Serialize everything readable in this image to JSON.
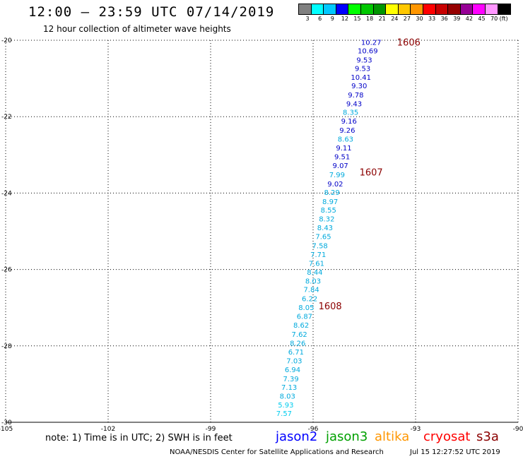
{
  "title": "12:00 – 23:59 UTC 07/14/2019",
  "subtitle": "12 hour collection of altimeter wave heights",
  "legend": {
    "colors": [
      "#808080",
      "#00ffff",
      "#00c8ff",
      "#0000ff",
      "#00ff00",
      "#00c800",
      "#009600",
      "#ffff00",
      "#ffc800",
      "#ff9600",
      "#ff0000",
      "#c80000",
      "#960000",
      "#960096",
      "#ff00ff",
      "#ff96ff",
      "#000000"
    ],
    "labels": [
      "3",
      "6",
      "9",
      "12",
      "15",
      "18",
      "21",
      "24",
      "27",
      "30",
      "33",
      "36",
      "39",
      "42",
      "45",
      "70",
      "(ft)"
    ]
  },
  "map": {
    "lon_ticks": [
      "-105",
      "-102",
      "-99",
      "-96",
      "-93",
      "-90"
    ],
    "lat_ticks": [
      "-20",
      "-22",
      "-24",
      "-26",
      "-28",
      "-30"
    ],
    "lon_range": [
      -105,
      -90
    ],
    "lat_range": [
      -30,
      -20
    ],
    "grid": true
  },
  "passes": [
    {
      "label": "1606",
      "color": "#8b0000",
      "lon": -93.2,
      "lat": -20.05
    },
    {
      "label": "1607",
      "color": "#8b0000",
      "lon": -94.3,
      "lat": -23.45
    },
    {
      "label": "1608",
      "color": "#8b0000",
      "lon": -95.5,
      "lat": -26.95
    }
  ],
  "observations": [
    {
      "value": "10.27",
      "color": "#0000c8",
      "lon": -94.3,
      "lat": -20.05
    },
    {
      "value": "10.69",
      "color": "#0000c8",
      "lon": -94.4,
      "lat": -20.27
    },
    {
      "value": "9.53",
      "color": "#0000c8",
      "lon": -94.5,
      "lat": -20.51
    },
    {
      "value": "9.53",
      "color": "#0000c8",
      "lon": -94.55,
      "lat": -20.73
    },
    {
      "value": "10.41",
      "color": "#0000c8",
      "lon": -94.6,
      "lat": -20.96
    },
    {
      "value": "9.30",
      "color": "#0000c8",
      "lon": -94.65,
      "lat": -21.18
    },
    {
      "value": "9.78",
      "color": "#0000c8",
      "lon": -94.75,
      "lat": -21.42
    },
    {
      "value": "9.43",
      "color": "#0000c8",
      "lon": -94.8,
      "lat": -21.65
    },
    {
      "value": "8.35",
      "color": "#00aadd",
      "lon": -94.9,
      "lat": -21.88
    },
    {
      "value": "9.16",
      "color": "#0000c8",
      "lon": -94.95,
      "lat": -22.11
    },
    {
      "value": "9.26",
      "color": "#0000c8",
      "lon": -95.0,
      "lat": -22.35
    },
    {
      "value": "8.63",
      "color": "#00aadd",
      "lon": -95.05,
      "lat": -22.58
    },
    {
      "value": "9.11",
      "color": "#0000c8",
      "lon": -95.1,
      "lat": -22.81
    },
    {
      "value": "9.51",
      "color": "#0000c8",
      "lon": -95.15,
      "lat": -23.04
    },
    {
      "value": "9.07",
      "color": "#0000c8",
      "lon": -95.2,
      "lat": -23.27
    },
    {
      "value": "7.99",
      "color": "#00aadd",
      "lon": -95.3,
      "lat": -23.51
    },
    {
      "value": "9.02",
      "color": "#0000c8",
      "lon": -95.35,
      "lat": -23.75
    },
    {
      "value": "8.29",
      "color": "#00aadd",
      "lon": -95.45,
      "lat": -23.97
    },
    {
      "value": "8.97",
      "color": "#00aadd",
      "lon": -95.5,
      "lat": -24.21
    },
    {
      "value": "8.55",
      "color": "#00aadd",
      "lon": -95.55,
      "lat": -24.44
    },
    {
      "value": "8.32",
      "color": "#00aadd",
      "lon": -95.6,
      "lat": -24.67
    },
    {
      "value": "8.43",
      "color": "#00aadd",
      "lon": -95.65,
      "lat": -24.9
    },
    {
      "value": "7.65",
      "color": "#00aadd",
      "lon": -95.7,
      "lat": -25.13
    },
    {
      "value": "7.58",
      "color": "#00aadd",
      "lon": -95.8,
      "lat": -25.37
    },
    {
      "value": "7.71",
      "color": "#00aadd",
      "lon": -95.85,
      "lat": -25.6
    },
    {
      "value": "7.61",
      "color": "#00aadd",
      "lon": -95.9,
      "lat": -25.83
    },
    {
      "value": "8.44",
      "color": "#00aadd",
      "lon": -95.95,
      "lat": -26.06
    },
    {
      "value": "8.03",
      "color": "#00aadd",
      "lon": -96.0,
      "lat": -26.29
    },
    {
      "value": "7.84",
      "color": "#00aadd",
      "lon": -96.05,
      "lat": -26.52
    },
    {
      "value": "6.22",
      "color": "#00aadd",
      "lon": -96.1,
      "lat": -26.76
    },
    {
      "value": "8.05",
      "color": "#00aadd",
      "lon": -96.2,
      "lat": -26.99
    },
    {
      "value": "6.87",
      "color": "#00aadd",
      "lon": -96.25,
      "lat": -27.22
    },
    {
      "value": "8.62",
      "color": "#00aadd",
      "lon": -96.35,
      "lat": -27.45
    },
    {
      "value": "7.62",
      "color": "#00aadd",
      "lon": -96.4,
      "lat": -27.69
    },
    {
      "value": "8.26",
      "color": "#00aadd",
      "lon": -96.45,
      "lat": -27.92
    },
    {
      "value": "6.71",
      "color": "#00aadd",
      "lon": -96.5,
      "lat": -28.15
    },
    {
      "value": "7.03",
      "color": "#00aadd",
      "lon": -96.55,
      "lat": -28.38
    },
    {
      "value": "6.94",
      "color": "#00aadd",
      "lon": -96.6,
      "lat": -28.61
    },
    {
      "value": "7.39",
      "color": "#00aadd",
      "lon": -96.65,
      "lat": -28.85
    },
    {
      "value": "7.13",
      "color": "#00aadd",
      "lon": -96.7,
      "lat": -29.08
    },
    {
      "value": "8.03",
      "color": "#00aadd",
      "lon": -96.75,
      "lat": -29.31
    },
    {
      "value": "5.93",
      "color": "#00ccee",
      "lon": -96.8,
      "lat": -29.54
    },
    {
      "value": "7.57",
      "color": "#00ccee",
      "lon": -96.85,
      "lat": -29.76
    }
  ],
  "footer": {
    "note": "note: 1) Time is in UTC; 2) SWH is in feet",
    "satellites": [
      {
        "name": "jason2",
        "color": "#0000ff"
      },
      {
        "name": "jason3",
        "color": "#00a000"
      },
      {
        "name": "altika",
        "color": "#ff9600"
      },
      {
        "name": "cryosat",
        "color": "#ff0000"
      },
      {
        "name": "s3a",
        "color": "#8b0000"
      }
    ],
    "credit": "NOAA/NESDIS Center for Satellite Applications and Research",
    "timestamp": "Jul 15 12:27:52 UTC 2019"
  }
}
